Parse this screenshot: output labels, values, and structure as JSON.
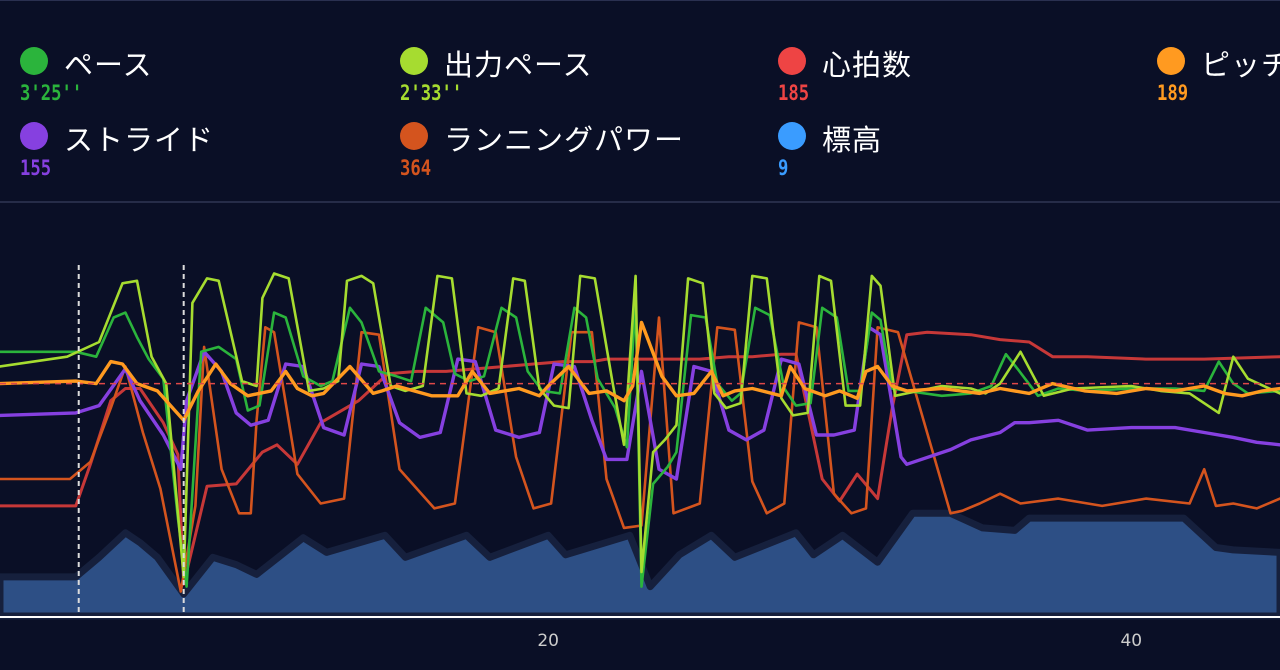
{
  "legend": [
    {
      "label": "ペース",
      "value": "3'25''",
      "color": "#2bb43c"
    },
    {
      "label": "出力ペース",
      "value": "2'33''",
      "color": "#a6dc30"
    },
    {
      "label": "心拍数",
      "value": "185",
      "color": "#ee4444"
    },
    {
      "label": "ピッチ",
      "value": "189",
      "color": "#ff9a20"
    },
    {
      "label": "ストライド",
      "value": "155",
      "color": "#8640e0"
    },
    {
      "label": "ランニングパワー",
      "value": "364",
      "color": "#d4541e"
    },
    {
      "label": "標高",
      "value": "9",
      "color": "#3a9cff"
    }
  ],
  "chart_data": {
    "type": "line",
    "x_ticks": [
      "20",
      "40"
    ],
    "x_range": [
      1.2,
      45.1
    ],
    "markers_x": [
      3.9,
      7.5
    ],
    "colors": {
      "pace": "#2bb43c",
      "output_pace": "#a6dc30",
      "heart_rate": "#c73838",
      "pitch": "#ff9a20",
      "stride": "#8640e0",
      "power": "#d4541e",
      "elevation": "#2d4f85",
      "elevation_edge": "#16203d",
      "ref_line": "#e04848",
      "axis": "#ffffff",
      "marker": "#dcdcdc",
      "tick": "#cccccc"
    },
    "series": [
      {
        "name": "標高",
        "key": "elevation",
        "x": [
          1.2,
          3.8,
          4.6,
          5.5,
          6.0,
          6.6,
          7.5,
          8.5,
          9.3,
          10.0,
          11.6,
          12.4,
          14.4,
          15.1,
          17.2,
          18.0,
          20.0,
          20.6,
          22.8,
          23.5,
          24.5,
          25.6,
          26.4,
          28.5,
          29.1,
          30.1,
          31.3,
          32.5,
          33.8,
          34.9,
          36.0,
          36.5,
          38.4,
          41.8,
          42.9,
          43.5,
          45.1
        ],
        "values": [
          1.6,
          1.6,
          2.4,
          3.4,
          3.0,
          2.4,
          0.9,
          2.4,
          2.1,
          1.7,
          3.2,
          2.6,
          3.3,
          2.4,
          3.3,
          2.4,
          3.3,
          2.5,
          3.3,
          1.2,
          2.5,
          3.3,
          2.4,
          3.4,
          2.5,
          3.3,
          2.2,
          4.2,
          4.2,
          3.6,
          3.5,
          4.0,
          4.0,
          4.0,
          2.8,
          2.7,
          2.6
        ]
      },
      {
        "name": "心拍数",
        "key": "heart_rate",
        "x": [
          1.2,
          3.8,
          4.3,
          5.0,
          5.5,
          6.0,
          6.8,
          7.3,
          7.5,
          8.3,
          9.3,
          10.2,
          10.7,
          11.4,
          12.2,
          13.5,
          14.5,
          15.5,
          16.5,
          17.5,
          18.5,
          19.5,
          20.5,
          21.5,
          22.0,
          22.5,
          23.2,
          23.7,
          24.5,
          25.2,
          26.2,
          27.0,
          28.0,
          28.5,
          29.4,
          30.0,
          30.6,
          31.3,
          31.8,
          32.3,
          33.0,
          34.5,
          35.5,
          36.5,
          37.3,
          38.5,
          40.5,
          42.5,
          45.1
        ],
        "values": [
          4.5,
          4.5,
          6.2,
          8.8,
          9.3,
          9.3,
          7.9,
          6.6,
          1.3,
          5.3,
          5.4,
          6.7,
          7.0,
          6.2,
          7.9,
          8.8,
          9.9,
          10.0,
          10.0,
          10.1,
          10.2,
          10.3,
          10.4,
          10.4,
          10.5,
          10.5,
          10.5,
          10.5,
          10.5,
          10.5,
          10.6,
          10.6,
          10.7,
          10.7,
          5.6,
          4.7,
          5.8,
          4.8,
          8.5,
          11.5,
          11.6,
          11.5,
          11.3,
          11.2,
          10.6,
          10.6,
          10.5,
          10.5,
          10.6
        ]
      },
      {
        "name": "ランニングパワー",
        "key": "power",
        "x": [
          1.2,
          3.6,
          4.3,
          5.0,
          5.5,
          6.1,
          6.7,
          7.4,
          7.9,
          8.2,
          8.8,
          9.4,
          9.8,
          10.0,
          10.3,
          10.6,
          11.4,
          12.2,
          13.0,
          13.6,
          14.2,
          14.9,
          16.1,
          16.8,
          17.6,
          18.2,
          18.9,
          19.5,
          20.1,
          20.8,
          21.5,
          22.0,
          22.6,
          23.2,
          23.8,
          24.3,
          25.2,
          25.8,
          26.4,
          27.0,
          27.5,
          28.1,
          28.6,
          29.2,
          29.8,
          30.4,
          30.9,
          31.3,
          32.0,
          33.8,
          34.2,
          34.8,
          35.5,
          36.2,
          37.5,
          39.0,
          40.5,
          42.0,
          42.5,
          42.9,
          43.5,
          44.3,
          45.1
        ],
        "values": [
          5.6,
          5.6,
          6.3,
          8.5,
          10.2,
          7.5,
          5.2,
          1.0,
          4.5,
          11.0,
          6.0,
          4.2,
          4.2,
          8.0,
          11.8,
          11.6,
          5.8,
          4.6,
          4.8,
          11.6,
          11.5,
          6.0,
          4.4,
          4.6,
          11.8,
          11.6,
          6.5,
          4.4,
          4.6,
          11.6,
          11.6,
          5.6,
          3.6,
          3.7,
          12.2,
          4.2,
          4.6,
          11.8,
          11.7,
          5.5,
          4.2,
          4.6,
          12.0,
          11.8,
          5.0,
          4.2,
          4.4,
          11.8,
          11.6,
          4.2,
          4.3,
          4.6,
          5.0,
          4.6,
          4.8,
          4.5,
          4.8,
          4.6,
          6.0,
          4.5,
          4.6,
          4.4,
          4.8
        ]
      },
      {
        "name": "ストライド",
        "key": "stride",
        "x": [
          1.2,
          3.8,
          4.6,
          5.5,
          6.0,
          6.8,
          7.4,
          7.6,
          8.2,
          8.8,
          9.3,
          9.8,
          10.4,
          11.0,
          11.6,
          12.3,
          13.0,
          13.6,
          14.2,
          14.9,
          15.6,
          16.3,
          16.9,
          17.5,
          18.2,
          19.0,
          19.7,
          20.2,
          20.9,
          21.5,
          22.0,
          22.7,
          23.2,
          23.8,
          24.4,
          25.0,
          25.6,
          26.2,
          26.8,
          27.4,
          28.0,
          28.6,
          29.2,
          29.8,
          30.5,
          31.0,
          31.4,
          32.1,
          32.3,
          33.8,
          34.5,
          35.5,
          36.0,
          36.5,
          37.5,
          38.5,
          40.0,
          41.5,
          42.5,
          43.5,
          44.3,
          45.1
        ],
        "values": [
          8.2,
          8.3,
          8.6,
          10.1,
          8.8,
          7.4,
          6.0,
          8.8,
          10.8,
          10.0,
          8.3,
          7.8,
          8.0,
          10.3,
          10.2,
          7.7,
          7.4,
          10.3,
          10.2,
          7.9,
          7.3,
          7.5,
          10.5,
          10.4,
          7.6,
          7.3,
          7.5,
          10.3,
          10.2,
          8.0,
          6.4,
          6.4,
          10.0,
          6.0,
          5.6,
          10.2,
          10.0,
          7.6,
          7.2,
          7.6,
          10.5,
          10.3,
          7.4,
          7.4,
          7.6,
          11.8,
          11.5,
          6.5,
          6.2,
          6.8,
          7.2,
          7.5,
          7.9,
          7.9,
          8.0,
          7.6,
          7.7,
          7.7,
          7.5,
          7.3,
          7.1,
          7.0
        ]
      },
      {
        "name": "ペース",
        "key": "pace",
        "x": [
          1.2,
          3.8,
          4.5,
          5.1,
          5.5,
          5.9,
          6.3,
          6.8,
          7.3,
          7.6,
          8.1,
          8.7,
          9.3,
          9.7,
          10.1,
          10.6,
          11.0,
          11.6,
          12.2,
          12.6,
          13.2,
          13.6,
          14.2,
          14.8,
          15.3,
          15.8,
          16.4,
          16.8,
          17.3,
          17.8,
          18.4,
          18.9,
          19.3,
          19.8,
          20.4,
          20.9,
          21.3,
          21.7,
          22.3,
          22.7,
          23.0,
          23.2,
          23.6,
          24.1,
          24.4,
          24.9,
          25.4,
          25.8,
          26.3,
          26.6,
          27.1,
          27.6,
          28.1,
          28.5,
          29.0,
          29.4,
          29.9,
          30.3,
          30.7,
          31.1,
          31.4,
          31.8,
          32.3,
          33.5,
          34.5,
          35.2,
          35.7,
          36.1,
          36.8,
          37.5,
          38.5,
          40.0,
          41.5,
          42.5,
          43.0,
          43.5,
          44.0,
          45.1
        ],
        "values": [
          10.8,
          10.8,
          10.6,
          12.2,
          12.4,
          11.4,
          10.5,
          9.7,
          4.0,
          1.2,
          10.8,
          11.0,
          10.5,
          8.4,
          8.6,
          12.4,
          12.2,
          9.8,
          9.4,
          9.6,
          12.6,
          12.0,
          10.0,
          9.8,
          9.6,
          12.6,
          12.0,
          9.9,
          9.6,
          9.8,
          12.6,
          12.2,
          10.0,
          9.2,
          9.1,
          12.6,
          12.2,
          9.7,
          8.5,
          6.9,
          12.9,
          1.2,
          5.4,
          6.1,
          6.7,
          12.3,
          12.2,
          9.5,
          8.8,
          9.1,
          12.6,
          12.3,
          9.3,
          8.6,
          8.7,
          12.6,
          12.2,
          9.2,
          9.2,
          12.4,
          12.1,
          9.3,
          9.2,
          9.0,
          9.1,
          9.4,
          10.7,
          10.1,
          9.0,
          9.3,
          9.2,
          9.3,
          9.3,
          9.2,
          10.4,
          9.5,
          9.1,
          9.2
        ]
      },
      {
        "name": "出力ペース",
        "key": "output_pace",
        "x": [
          1.2,
          3.5,
          4.6,
          5.4,
          5.9,
          6.4,
          6.9,
          7.5,
          7.8,
          8.3,
          8.7,
          9.5,
          10.0,
          10.2,
          10.6,
          11.1,
          11.8,
          12.3,
          12.8,
          13.1,
          13.6,
          14.0,
          14.6,
          15.1,
          15.7,
          16.2,
          16.7,
          17.2,
          17.7,
          18.3,
          18.8,
          19.2,
          19.7,
          20.2,
          20.7,
          21.1,
          21.6,
          22.2,
          22.6,
          23.0,
          23.2,
          23.6,
          24.0,
          24.4,
          24.8,
          25.3,
          25.7,
          26.1,
          26.6,
          27.0,
          27.5,
          28.0,
          28.4,
          28.9,
          29.3,
          29.7,
          30.2,
          30.7,
          31.1,
          31.4,
          31.9,
          32.3,
          33.5,
          34.5,
          35.0,
          35.5,
          36.2,
          37.0,
          38.0,
          40.0,
          41.0,
          42.0,
          42.5,
          43.0,
          43.5,
          44.0,
          45.1
        ],
        "values": [
          10.2,
          10.6,
          11.2,
          13.6,
          13.7,
          10.6,
          9.5,
          1.6,
          12.8,
          13.8,
          13.7,
          9.6,
          9.4,
          13.0,
          14.0,
          13.8,
          9.2,
          9.3,
          9.6,
          13.7,
          13.9,
          13.6,
          9.4,
          9.2,
          9.4,
          13.9,
          13.8,
          9.1,
          9.0,
          9.3,
          13.8,
          13.7,
          9.3,
          8.6,
          8.5,
          13.9,
          13.8,
          9.6,
          7.0,
          13.9,
          1.8,
          6.7,
          7.2,
          7.8,
          13.8,
          13.6,
          9.1,
          8.5,
          8.7,
          13.9,
          13.8,
          8.9,
          8.2,
          8.3,
          13.9,
          13.7,
          8.6,
          8.6,
          13.9,
          13.5,
          9.0,
          9.1,
          9.4,
          9.3,
          9.1,
          9.5,
          10.8,
          9.0,
          9.3,
          9.4,
          9.2,
          9.1,
          8.7,
          8.3,
          10.6,
          9.7,
          9.1
        ]
      },
      {
        "name": "ピッチ",
        "key": "pitch",
        "x": [
          1.2,
          3.8,
          4.5,
          5.0,
          5.4,
          5.9,
          6.6,
          7.2,
          7.5,
          8.0,
          8.6,
          9.1,
          9.7,
          10.5,
          11.0,
          11.4,
          11.9,
          12.3,
          13.2,
          14.0,
          14.3,
          14.8,
          16.0,
          16.9,
          17.4,
          18.0,
          19.0,
          19.7,
          20.0,
          20.7,
          21.4,
          22.0,
          22.6,
          22.9,
          23.2,
          23.9,
          24.4,
          25.0,
          25.6,
          26.0,
          26.4,
          27.0,
          28.0,
          28.3,
          28.8,
          29.5,
          30.0,
          30.6,
          30.9,
          31.3,
          31.8,
          32.3,
          33.5,
          34.8,
          35.5,
          36.5,
          37.3,
          38.4,
          39.5,
          40.5,
          41.5,
          42.5,
          43.2,
          43.8,
          44.5,
          45.1
        ],
        "values": [
          9.5,
          9.6,
          9.5,
          10.4,
          10.3,
          9.5,
          9.2,
          8.4,
          8.0,
          9.2,
          10.3,
          9.5,
          9.0,
          9.2,
          10.0,
          9.3,
          9.0,
          9.1,
          10.2,
          9.1,
          9.2,
          9.4,
          9.0,
          9.0,
          10.0,
          9.1,
          9.3,
          9.0,
          9.4,
          10.2,
          9.1,
          9.2,
          8.8,
          9.4,
          12.0,
          9.8,
          9.0,
          9.1,
          10.0,
          9.0,
          9.2,
          9.3,
          9.0,
          10.2,
          9.3,
          9.0,
          9.2,
          8.9,
          10.0,
          10.2,
          9.4,
          9.2,
          9.3,
          9.1,
          9.3,
          9.1,
          9.5,
          9.2,
          9.1,
          9.3,
          9.2,
          9.4,
          9.1,
          9.0,
          9.2,
          9.3
        ]
      }
    ],
    "y_range": [
      0,
      16.8
    ],
    "ref_line_y": 9.5
  }
}
